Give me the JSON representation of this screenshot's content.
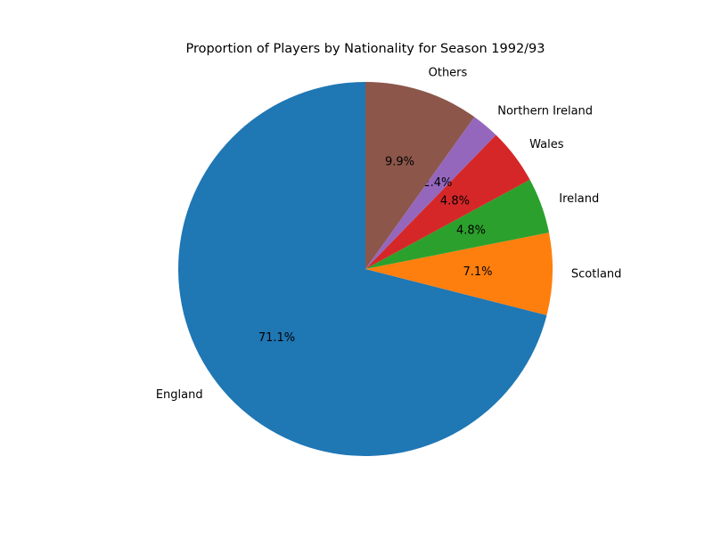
{
  "chart_data": {
    "type": "pie",
    "title": "Proportion of Players by Nationality for Season 1992/93",
    "start_angle_deg": 90,
    "direction": "counterclockwise",
    "slices": [
      {
        "label": "England",
        "value": 71.1,
        "pct_label": "71.1%",
        "color": "#1f77b4"
      },
      {
        "label": "Scotland",
        "value": 7.1,
        "pct_label": "7.1%",
        "color": "#ff7f0e"
      },
      {
        "label": "Ireland",
        "value": 4.8,
        "pct_label": "4.8%",
        "color": "#2ca02c"
      },
      {
        "label": "Wales",
        "value": 4.8,
        "pct_label": "4.8%",
        "color": "#d62728"
      },
      {
        "label": "Northern Ireland",
        "value": 2.4,
        "pct_label": "2.4%",
        "color": "#9467bd"
      },
      {
        "label": "Others",
        "value": 9.9,
        "pct_label": "9.9%",
        "color": "#8c564b"
      }
    ]
  }
}
